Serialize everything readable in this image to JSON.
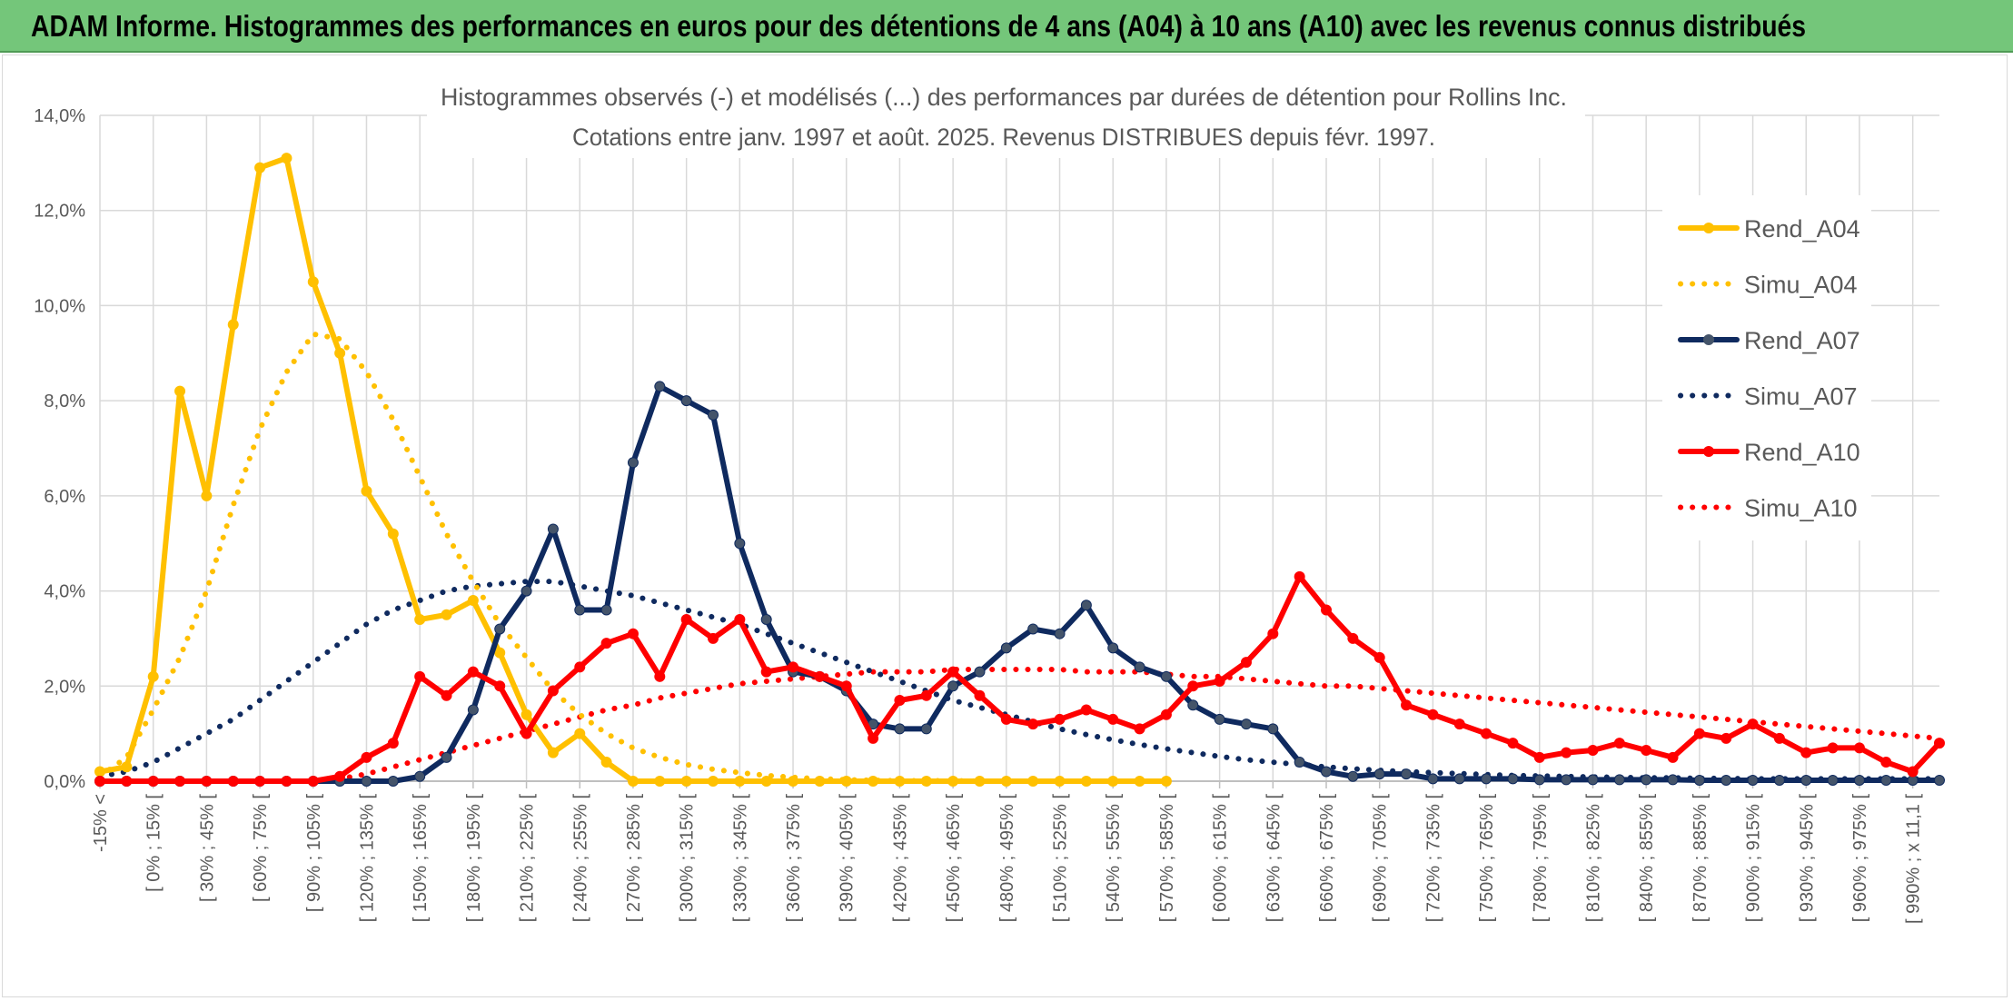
{
  "banner": {
    "text": "ADAM Informe. Histogrammes des performances en euros pour des détentions de 4 ans (A04) à 10 ans (A10) avec les revenus connus distribués"
  },
  "colors": {
    "banner_bg": "#74c67a",
    "A04": "#ffc000",
    "A07": "#0f2a5f",
    "A10": "#ff0000",
    "grid": "#d9d9d9"
  },
  "chart_data": {
    "type": "line",
    "title": "Histogrammes observés (-) et modélisés (...) des performances par durées de détention pour Rollins Inc.",
    "subtitle": "Cotations entre janv. 1997 et août. 2025. Revenus DISTRIBUES depuis févr. 1997.",
    "ylim": [
      0,
      14
    ],
    "y_ticks": [
      "0,0%",
      "2,0%",
      "4,0%",
      "6,0%",
      "8,0%",
      "10,0%",
      "12,0%",
      "14,0%"
    ],
    "legend_position": "right",
    "x_tick_labels": [
      "-15% <",
      "[ 0% ; 15% [",
      "[ 30% ; 45% [",
      "[ 60% ; 75% [",
      "[ 90% ; 105% [",
      "[ 120% ; 135% [",
      "[ 150% ; 165% [",
      "[ 180% ; 195% [",
      "[ 210% ; 225% [",
      "[ 240% ; 255% [",
      "[ 270% ; 285% [",
      "[ 300% ; 315% [",
      "[ 330% ; 345% [",
      "[ 360% ; 375% [",
      "[ 390% ; 405% [",
      "[ 420% ; 435% [",
      "[ 450% ; 465% [",
      "[ 480% ; 495% [",
      "[ 510% ; 525% [",
      "[ 540% ; 555% [",
      "[ 570% ; 585% [",
      "[ 600% ; 615% [",
      "[ 630% ; 645% [",
      "[ 660% ; 675% [",
      "[ 690% ; 705% [",
      "[ 720% ; 735% [",
      "[ 750% ; 765% [",
      "[ 780% ; 795% [",
      "[ 810% ; 825% [",
      "[ 840% ; 855% [",
      "[ 870% ; 885% [",
      "[ 900% ; 915% [",
      "[ 930% ; 945% [",
      "[ 960% ; 975% [",
      "[ 990% ; x 11,1 ["
    ],
    "series": [
      {
        "name": "Rend_A04",
        "style": "solid-marker",
        "color": "#ffc000",
        "values": [
          0.2,
          0.3,
          2.2,
          8.2,
          6.0,
          9.6,
          12.9,
          13.1,
          10.5,
          9.0,
          6.1,
          5.2,
          3.4,
          3.5,
          3.8,
          2.7,
          1.4,
          0.6,
          1.0,
          0.4,
          0,
          0,
          0,
          0,
          0,
          0,
          0,
          0,
          0,
          0,
          0,
          0,
          0,
          0,
          0,
          0,
          0,
          0,
          0,
          0,
          0,
          0,
          0,
          0,
          0,
          0,
          0,
          0,
          0,
          0,
          0,
          0,
          0,
          0,
          0,
          0,
          0,
          0,
          0,
          0,
          0,
          0,
          0,
          0,
          0,
          0,
          0,
          0,
          0,
          0
        ]
      },
      {
        "name": "Simu_A04",
        "style": "dotted",
        "color": "#ffc000",
        "values": [
          0.1,
          0.5,
          1.5,
          2.6,
          4.0,
          5.8,
          7.4,
          8.6,
          9.4,
          9.3,
          8.6,
          7.6,
          6.4,
          5.2,
          4.2,
          3.3,
          2.6,
          1.9,
          1.4,
          1.0,
          0.7,
          0.5,
          0.35,
          0.25,
          0.18,
          0.12,
          0.08,
          0.05,
          0.03,
          0.02,
          0.01,
          0.01,
          0.01,
          0,
          0,
          0,
          0,
          0,
          0,
          0,
          0,
          0,
          0,
          0,
          0,
          0,
          0,
          0,
          0,
          0,
          0,
          0,
          0,
          0,
          0,
          0,
          0,
          0,
          0,
          0,
          0,
          0,
          0,
          0,
          0,
          0,
          0,
          0,
          0,
          0
        ]
      },
      {
        "name": "Rend_A07",
        "style": "solid-marker",
        "color": "#0f2a5f",
        "values": [
          0,
          0,
          0,
          0,
          0,
          0,
          0,
          0,
          0,
          0,
          0,
          0,
          0.1,
          0.5,
          1.5,
          3.2,
          4.0,
          5.3,
          3.6,
          3.6,
          6.7,
          8.3,
          8.0,
          7.7,
          5.0,
          3.4,
          2.3,
          2.2,
          1.9,
          1.2,
          1.1,
          1.1,
          2.0,
          2.3,
          2.8,
          3.2,
          3.1,
          3.7,
          2.8,
          2.4,
          2.2,
          1.6,
          1.3,
          1.2,
          1.1,
          0.4,
          0.2,
          0.1,
          0.15,
          0.15,
          0.05,
          0.05,
          0.05,
          0.05,
          0.03,
          0.03,
          0.03,
          0.03,
          0.03,
          0.03,
          0.02,
          0.02,
          0.02,
          0.02,
          0.02,
          0.02,
          0.02,
          0.02,
          0.02,
          0.02
        ]
      },
      {
        "name": "Simu_A07",
        "style": "dotted",
        "color": "#0f2a5f",
        "values": [
          0.1,
          0.2,
          0.4,
          0.7,
          1.0,
          1.3,
          1.7,
          2.1,
          2.5,
          2.9,
          3.3,
          3.6,
          3.8,
          4.0,
          4.1,
          4.15,
          4.2,
          4.2,
          4.1,
          4.0,
          3.9,
          3.75,
          3.6,
          3.45,
          3.3,
          3.1,
          2.9,
          2.7,
          2.5,
          2.3,
          2.1,
          1.9,
          1.7,
          1.55,
          1.4,
          1.25,
          1.1,
          0.98,
          0.87,
          0.77,
          0.68,
          0.6,
          0.52,
          0.45,
          0.4,
          0.35,
          0.3,
          0.26,
          0.23,
          0.2,
          0.18,
          0.16,
          0.14,
          0.12,
          0.11,
          0.1,
          0.09,
          0.08,
          0.07,
          0.07,
          0.06,
          0.06,
          0.05,
          0.05,
          0.05,
          0.05,
          0.05,
          0.05,
          0.05,
          0.05
        ]
      },
      {
        "name": "Rend_A10",
        "style": "solid-marker",
        "color": "#ff0000",
        "values": [
          0,
          0,
          0,
          0,
          0,
          0,
          0,
          0,
          0,
          0.1,
          0.5,
          0.8,
          2.2,
          1.8,
          2.3,
          2.0,
          1.0,
          1.9,
          2.4,
          2.9,
          3.1,
          2.2,
          3.4,
          3.0,
          3.4,
          2.3,
          2.4,
          2.2,
          2.0,
          0.9,
          1.7,
          1.8,
          2.3,
          1.8,
          1.3,
          1.2,
          1.3,
          1.5,
          1.3,
          1.1,
          1.4,
          2.0,
          2.1,
          2.5,
          3.1,
          4.3,
          3.6,
          3.0,
          2.6,
          1.6,
          1.4,
          1.2,
          1.0,
          0.8,
          0.5,
          0.6,
          0.65,
          0.8,
          0.65,
          0.5,
          1.0,
          0.9,
          1.2,
          0.9,
          0.6,
          0.7,
          0.7,
          0.4,
          0.2,
          0.8
        ]
      },
      {
        "name": "Simu_A10",
        "style": "dotted",
        "color": "#ff0000",
        "values": [
          0,
          0,
          0,
          0,
          0,
          0,
          0,
          0,
          0,
          0.05,
          0.15,
          0.3,
          0.45,
          0.6,
          0.75,
          0.9,
          1.05,
          1.2,
          1.35,
          1.5,
          1.6,
          1.75,
          1.85,
          1.95,
          2.05,
          2.1,
          2.15,
          2.2,
          2.25,
          2.3,
          2.3,
          2.3,
          2.35,
          2.35,
          2.35,
          2.35,
          2.35,
          2.3,
          2.3,
          2.3,
          2.25,
          2.2,
          2.2,
          2.15,
          2.1,
          2.05,
          2.0,
          2.0,
          1.95,
          1.9,
          1.85,
          1.8,
          1.75,
          1.7,
          1.65,
          1.6,
          1.55,
          1.5,
          1.45,
          1.4,
          1.35,
          1.3,
          1.25,
          1.2,
          1.15,
          1.1,
          1.05,
          1.0,
          0.95,
          0.9
        ]
      }
    ]
  }
}
